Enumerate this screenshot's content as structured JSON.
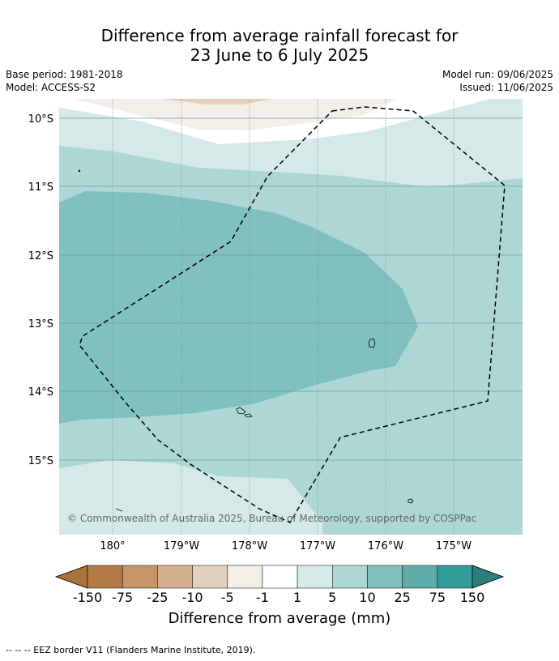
{
  "title": {
    "line1": "Difference from average rainfall forecast for",
    "line2": "23 June to 6 July 2025"
  },
  "meta": {
    "base_period": "Base period: 1981-2018",
    "model": "Model: ACCESS-S2",
    "model_run": "Model run: 09/06/2025",
    "issued": "Issued: 11/06/2025"
  },
  "map": {
    "lat_labels": [
      "10°S",
      "11°S",
      "12°S",
      "13°S",
      "14°S",
      "15°S"
    ],
    "lon_labels": [
      "180°",
      "179°W",
      "178°W",
      "177°W",
      "176°W",
      "175°W"
    ],
    "copyright": "© Commonwealth of Australia 2025, Bureau of Meteorology, supported by COSPPac",
    "eez_border_style": "dashed black line"
  },
  "colorbar": {
    "labels": [
      "-150",
      "-75",
      "-25",
      "-10",
      "-5",
      "-1",
      "1",
      "5",
      "10",
      "25",
      "75",
      "150"
    ],
    "colors": [
      "#a8743c",
      "#b47a44",
      "#c39568",
      "#d5b08e",
      "#e3cfbd",
      "#f3eee8",
      "#ffffff",
      "#d5e9e8",
      "#add7d5",
      "#80c0be",
      "#5eadaa",
      "#339c98",
      "#2c7f7c"
    ],
    "title": "Difference from average (mm)"
  },
  "footnote": "--  --  -- EEZ border V11 (Flanders Marine Institute, 2019)."
}
